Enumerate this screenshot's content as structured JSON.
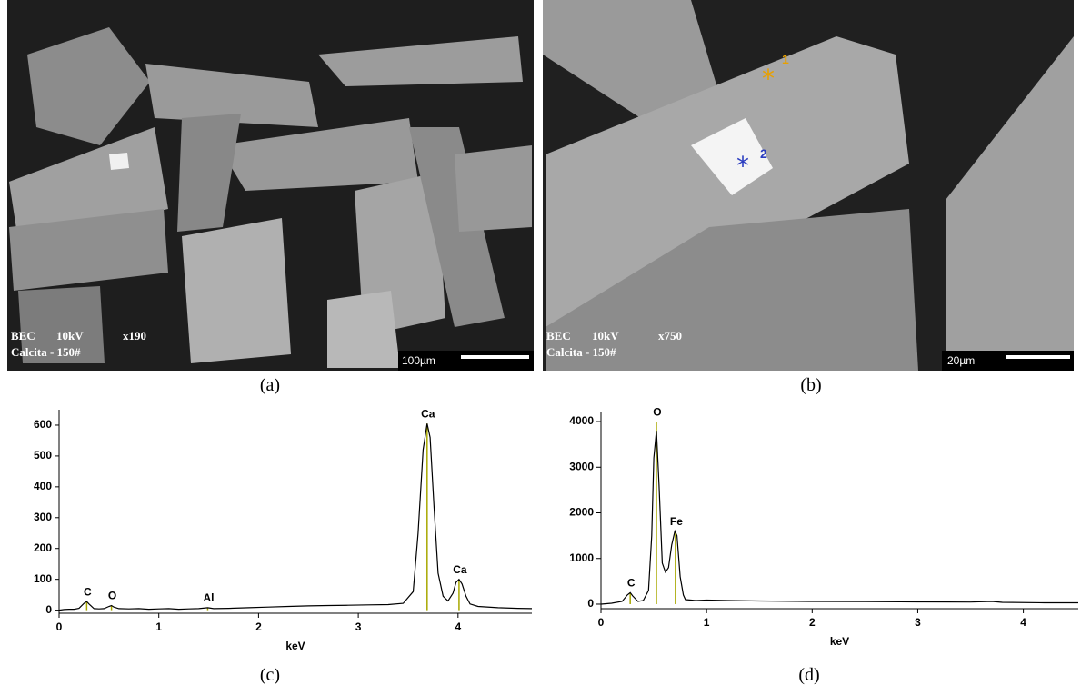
{
  "panels": [
    {
      "info": [
        "BEC",
        "10kV",
        "x190"
      ],
      "sample": "Calcita - 150#",
      "scale_bar": "100µm",
      "caption": "(a)"
    },
    {
      "info": [
        "BEC",
        "10kV",
        "x750"
      ],
      "sample": "Calcita - 150#",
      "scale_bar": "20µm",
      "caption": "(b)",
      "points": [
        "1",
        "2"
      ]
    }
  ],
  "chart_data": [
    {
      "type": "line",
      "caption": "(c)",
      "x_label": "keV",
      "color": "#000000",
      "marker_color": "#a8a800",
      "x": [
        0,
        0.05,
        0.1,
        0.15,
        0.2,
        0.25,
        0.277,
        0.3,
        0.35,
        0.4,
        0.45,
        0.5,
        0.525,
        0.55,
        0.6,
        0.7,
        0.8,
        0.9,
        1.0,
        1.1,
        1.2,
        1.3,
        1.4,
        1.49,
        1.55,
        1.7,
        1.9,
        2.1,
        2.3,
        2.5,
        2.7,
        2.9,
        3.1,
        3.3,
        3.45,
        3.55,
        3.6,
        3.65,
        3.69,
        3.72,
        3.76,
        3.8,
        3.85,
        3.9,
        3.95,
        3.98,
        4.01,
        4.04,
        4.08,
        4.12,
        4.2,
        4.4,
        4.6,
        4.74
      ],
      "values": [
        0,
        2,
        3,
        3,
        6,
        22,
        28,
        20,
        5,
        4,
        5,
        12,
        15,
        10,
        5,
        4,
        5,
        3,
        4,
        5,
        3,
        4,
        5,
        8,
        5,
        6,
        8,
        10,
        12,
        14,
        15,
        16,
        17,
        18,
        22,
        60,
        250,
        520,
        605,
        560,
        330,
        120,
        45,
        30,
        55,
        90,
        100,
        85,
        45,
        20,
        12,
        8,
        6,
        5
      ],
      "annotations": [
        {
          "text": "C",
          "x": 0.277,
          "y": 28
        },
        {
          "text": "O",
          "x": 0.525,
          "y": 15
        },
        {
          "text": "Al",
          "x": 1.49,
          "y": 8
        },
        {
          "text": "Ca",
          "x": 3.69,
          "y": 605
        },
        {
          "text": "Ca",
          "x": 4.01,
          "y": 100
        }
      ],
      "xlim": [
        0,
        4.74
      ],
      "ylim": [
        -10,
        650
      ],
      "xticks": [
        0,
        1,
        2,
        3,
        4
      ],
      "yticks": [
        0,
        100,
        200,
        300,
        400,
        500,
        600
      ]
    },
    {
      "type": "line",
      "caption": "(d)",
      "x_label": "keV",
      "color": "#000000",
      "marker_color": "#a8a800",
      "x": [
        0,
        0.1,
        0.2,
        0.25,
        0.277,
        0.3,
        0.35,
        0.4,
        0.45,
        0.48,
        0.5,
        0.525,
        0.55,
        0.58,
        0.61,
        0.64,
        0.67,
        0.7,
        0.72,
        0.75,
        0.78,
        0.8,
        0.9,
        1.0,
        1.2,
        1.5,
        2.0,
        2.5,
        3.0,
        3.5,
        3.7,
        3.8,
        4.2,
        4.52
      ],
      "values": [
        0,
        20,
        60,
        200,
        250,
        180,
        60,
        80,
        300,
        1500,
        3200,
        3800,
        2600,
        900,
        700,
        800,
        1300,
        1600,
        1500,
        600,
        200,
        100,
        80,
        90,
        80,
        70,
        60,
        55,
        50,
        45,
        60,
        40,
        30,
        30
      ],
      "annotations": [
        {
          "text": "C",
          "x": 0.277,
          "y": 250
        },
        {
          "text": "O",
          "x": 0.525,
          "y": 3990
        },
        {
          "text": "Fe",
          "x": 0.705,
          "y": 1600
        }
      ],
      "xlim": [
        0,
        4.52
      ],
      "ylim": [
        -100,
        4200
      ],
      "xticks": [
        0,
        1,
        2,
        3,
        4
      ],
      "yticks": [
        0,
        1000,
        2000,
        3000,
        4000
      ]
    }
  ]
}
